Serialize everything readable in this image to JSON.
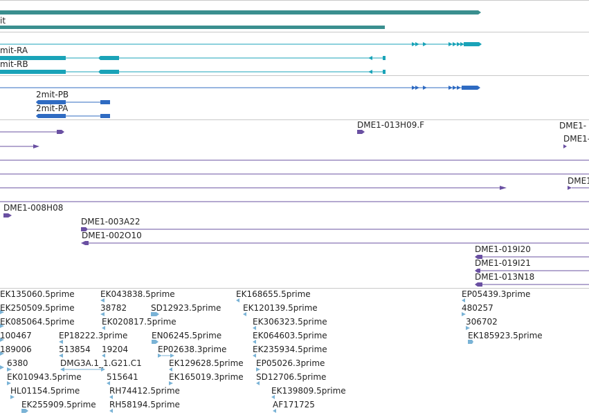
{
  "colors": {
    "divider": "#c8c8c8",
    "gene_track": "#3a8f8f",
    "transcript_rb": "#1aa3b8",
    "transcript_pb": "#2f6bc2",
    "clone": "#6a50a2",
    "est": "#7ab3d6"
  },
  "tracks": {
    "gene": {
      "label": "it"
    },
    "transcripts_r": {
      "labels": [
        "mit‑RA",
        "mit‑RB"
      ]
    },
    "transcripts_p": {
      "labels": [
        "2mit‑PB",
        "2mit‑PA"
      ]
    },
    "clones": {
      "labels": [
        "DME1‑013H09.F",
        "DME1‑",
        "DME1‑",
        "DME1‑",
        "DME1‑008H08",
        "DME1‑003A22",
        "DME1‑002O10",
        "DME1‑019I20",
        "DME1‑019I21",
        "DME1‑013N18"
      ]
    },
    "ests": {
      "col1": [
        "EK135060.5prime",
        "EK250509.5prime",
        "EK085064.5prime",
        "100467",
        "189006",
        "6380",
        "EK010943.5prime",
        "HL01154.5prime",
        "EK255909.5prime"
      ],
      "col2": [
        "EK043838.5prime",
        "38782",
        "EK020817.5prime",
        "EP18222.3prime",
        "513854",
        "19204",
        "DMG3A.1_1.G21.C1",
        "515641",
        "RH74412.5prime",
        "RH58194.5prime"
      ],
      "col3": [
        "SD12923.5prime",
        "EN06245.5prime",
        "EP02638.3prime",
        "EK129628.5prime",
        "EK165019.3prime"
      ],
      "col4": [
        "EK168655.5prime",
        "EK120139.5prime",
        "EK306323.5prime",
        "EK064603.5prime",
        "EK235934.5prime",
        "EP05026.3prime",
        "SD12706.5prime",
        "EK139809.5prime",
        "AF171725"
      ],
      "col5": [
        "EP05439.3prime",
        "480257",
        "306702",
        "EK185923.5prime"
      ]
    }
  }
}
